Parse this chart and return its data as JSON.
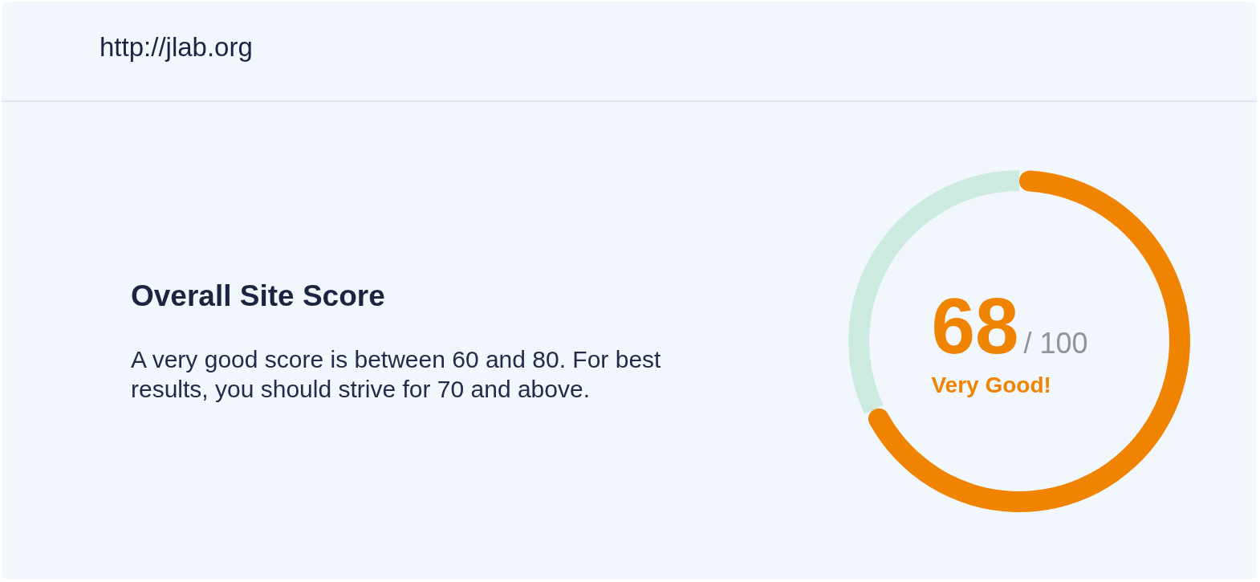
{
  "chart_data": {
    "type": "donut",
    "title": "Overall Site Score",
    "subtitle": "A very good score is between 60 and 80. For best results, you should strive for 70 and above.",
    "categories": [
      null,
      null
    ],
    "values": [
      68,
      32
    ],
    "colors": [
      "#f08300",
      "#cdeae1"
    ],
    "annotations": [
      "http://jlab.org",
      "68",
      "/ 100",
      "Very Good!"
    ],
    "legend": false
  }
}
